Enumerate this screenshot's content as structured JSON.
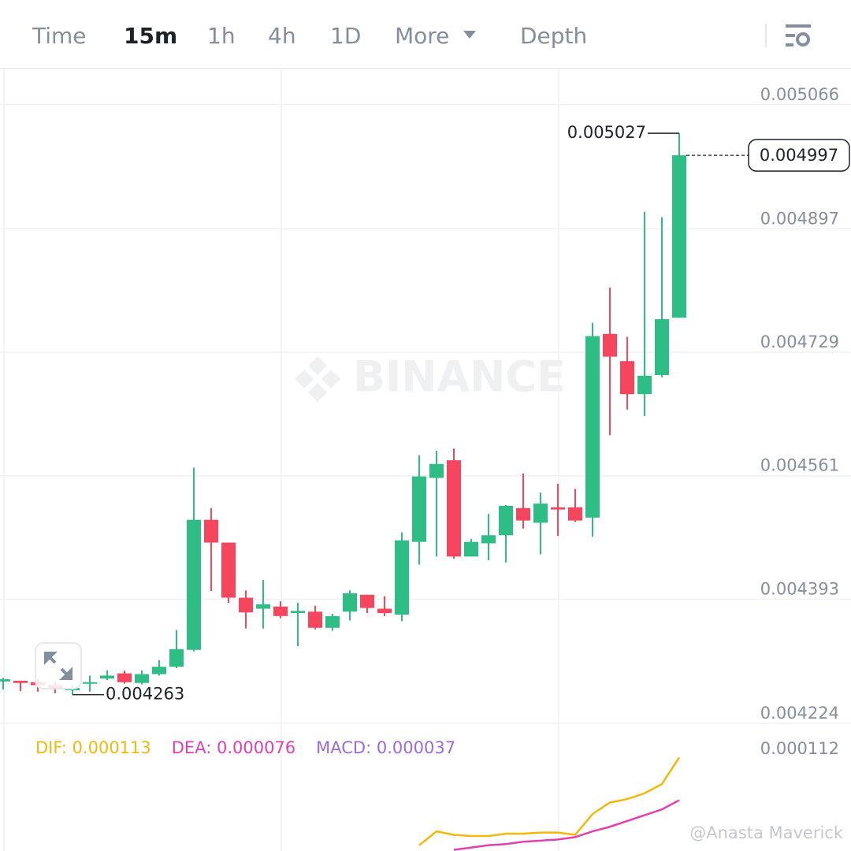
{
  "tabs": [
    "Time",
    "15m",
    "1h",
    "4h",
    "1D",
    "More",
    "Depth"
  ],
  "active_tab": 1,
  "watermark": "BINANCE",
  "credit": "@Anasta Maverick",
  "chart_data": [
    {
      "type": "candlestick",
      "up_color": "#2ebd85",
      "down_color": "#f6465d",
      "ylim": [
        0.004224,
        0.005114
      ],
      "yticks": [
        0.005066,
        0.004897,
        0.004729,
        0.004561,
        0.004393,
        0.004224
      ],
      "grid": true,
      "high_label": 0.005027,
      "low_label": 0.004263,
      "last_price": 0.004997,
      "open": [
        0.004281,
        0.004282,
        0.00428,
        0.004276,
        0.004269,
        0.004278,
        0.004285,
        0.004292,
        0.004279,
        0.004291,
        0.004301,
        0.004324,
        0.004501,
        0.00447,
        0.004395,
        0.00438,
        0.004383,
        0.004374,
        0.004376,
        0.004354,
        0.004376,
        0.004399,
        0.00438,
        0.004372,
        0.004471,
        0.004558,
        0.004582,
        0.004451,
        0.004469,
        0.00448,
        0.004517,
        0.004497,
        0.004518,
        0.004518,
        0.004504,
        0.004754,
        0.004717,
        0.004672,
        0.004698,
        0.004776
      ],
      "high": [
        0.004286,
        0.004282,
        0.004284,
        0.004281,
        0.004276,
        0.004289,
        0.004296,
        0.004296,
        0.004296,
        0.00431,
        0.004351,
        0.004572,
        0.004517,
        0.00447,
        0.004405,
        0.004419,
        0.00439,
        0.004388,
        0.004384,
        0.004373,
        0.004405,
        0.004399,
        0.004397,
        0.004484,
        0.004589,
        0.004595,
        0.004598,
        0.004475,
        0.004509,
        0.004521,
        0.004564,
        0.004538,
        0.00455,
        0.004543,
        0.004769,
        0.004817,
        0.00475,
        0.00492,
        0.004913,
        0.005027
      ],
      "low": [
        0.00427,
        0.004268,
        0.004267,
        0.004265,
        0.004263,
        0.004267,
        0.004283,
        0.004278,
        0.004277,
        0.004289,
        0.004299,
        0.004322,
        0.004404,
        0.004388,
        0.004353,
        0.004353,
        0.004367,
        0.004329,
        0.004352,
        0.00435,
        0.004364,
        0.004374,
        0.00437,
        0.004363,
        0.00444,
        0.004451,
        0.004448,
        0.004451,
        0.004446,
        0.004443,
        0.004489,
        0.004454,
        0.004479,
        0.004498,
        0.004478,
        0.004616,
        0.004651,
        0.004642,
        0.004695,
        0.004776
      ],
      "close": [
        0.004284,
        0.004279,
        0.004276,
        0.004272,
        0.004272,
        0.00428,
        0.004289,
        0.00428,
        0.004291,
        0.004301,
        0.004325,
        0.004501,
        0.00447,
        0.004395,
        0.004375,
        0.004386,
        0.00437,
        0.004377,
        0.004354,
        0.00437,
        0.004401,
        0.004381,
        0.004374,
        0.004473,
        0.00456,
        0.004577,
        0.004451,
        0.004471,
        0.00448,
        0.00452,
        0.0045,
        0.004523,
        0.004515,
        0.0045,
        0.004751,
        0.004723,
        0.004672,
        0.004697,
        0.004774,
        0.004997
      ]
    },
    {
      "type": "line",
      "ylim": [
        3.2e-05,
        0.000131
      ],
      "yticks": [
        0.000112
      ],
      "annotations": [
        "MACD: 0.000037"
      ],
      "annotation_color": "#9c6ade",
      "series": [
        {
          "name": "DIF: 0.000113",
          "color": "#f0b90b",
          "values": [
            null,
            null,
            null,
            null,
            null,
            null,
            null,
            null,
            null,
            null,
            null,
            null,
            null,
            null,
            null,
            null,
            null,
            null,
            null,
            null,
            null,
            null,
            null,
            null,
            3.7e-05,
            4.9e-05,
            4.6e-05,
            4.5e-05,
            4.5e-05,
            4.7e-05,
            4.7e-05,
            4.8e-05,
            4.8e-05,
            4.6e-05,
            6.4e-05,
            7.4e-05,
            7.7e-05,
            8.2e-05,
            9e-05,
            0.000113
          ]
        },
        {
          "name": "DEA: 0.000076",
          "color": "#e040b0",
          "values": [
            null,
            null,
            null,
            null,
            null,
            null,
            null,
            null,
            null,
            null,
            null,
            null,
            null,
            null,
            null,
            null,
            null,
            null,
            null,
            null,
            null,
            null,
            null,
            null,
            null,
            null,
            3.3e-05,
            3.5e-05,
            3.7e-05,
            3.8e-05,
            4e-05,
            4.1e-05,
            4.2e-05,
            4.4e-05,
            4.9e-05,
            5.3e-05,
            5.8e-05,
            6.3e-05,
            6.8e-05,
            7.6e-05
          ]
        }
      ]
    }
  ]
}
